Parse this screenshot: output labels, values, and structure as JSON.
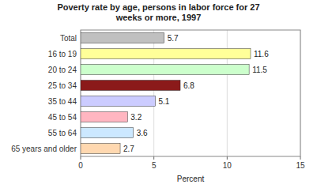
{
  "chart_data": {
    "type": "bar",
    "orientation": "horizontal",
    "title": "Poverty rate by age, persons in labor force for 27\nweeks or more, 1997",
    "categories": [
      "Total",
      "16 to 19",
      "20 to 24",
      "25 to 34",
      "35 to 44",
      "45 to 54",
      "55 to 64",
      "65 years and older"
    ],
    "values": [
      5.7,
      11.6,
      11.5,
      6.8,
      5.1,
      3.2,
      3.6,
      2.7
    ],
    "colors": [
      "#c0c0c0",
      "#ffff99",
      "#ccffcc",
      "#8b1a1a",
      "#ccccff",
      "#ffb6c1",
      "#cce8ff",
      "#ffd8b0"
    ],
    "xlabel": "Percent",
    "xlim": [
      0,
      15
    ],
    "xticks": [
      0,
      5,
      10,
      15
    ],
    "grid": true,
    "data_labels": true
  }
}
